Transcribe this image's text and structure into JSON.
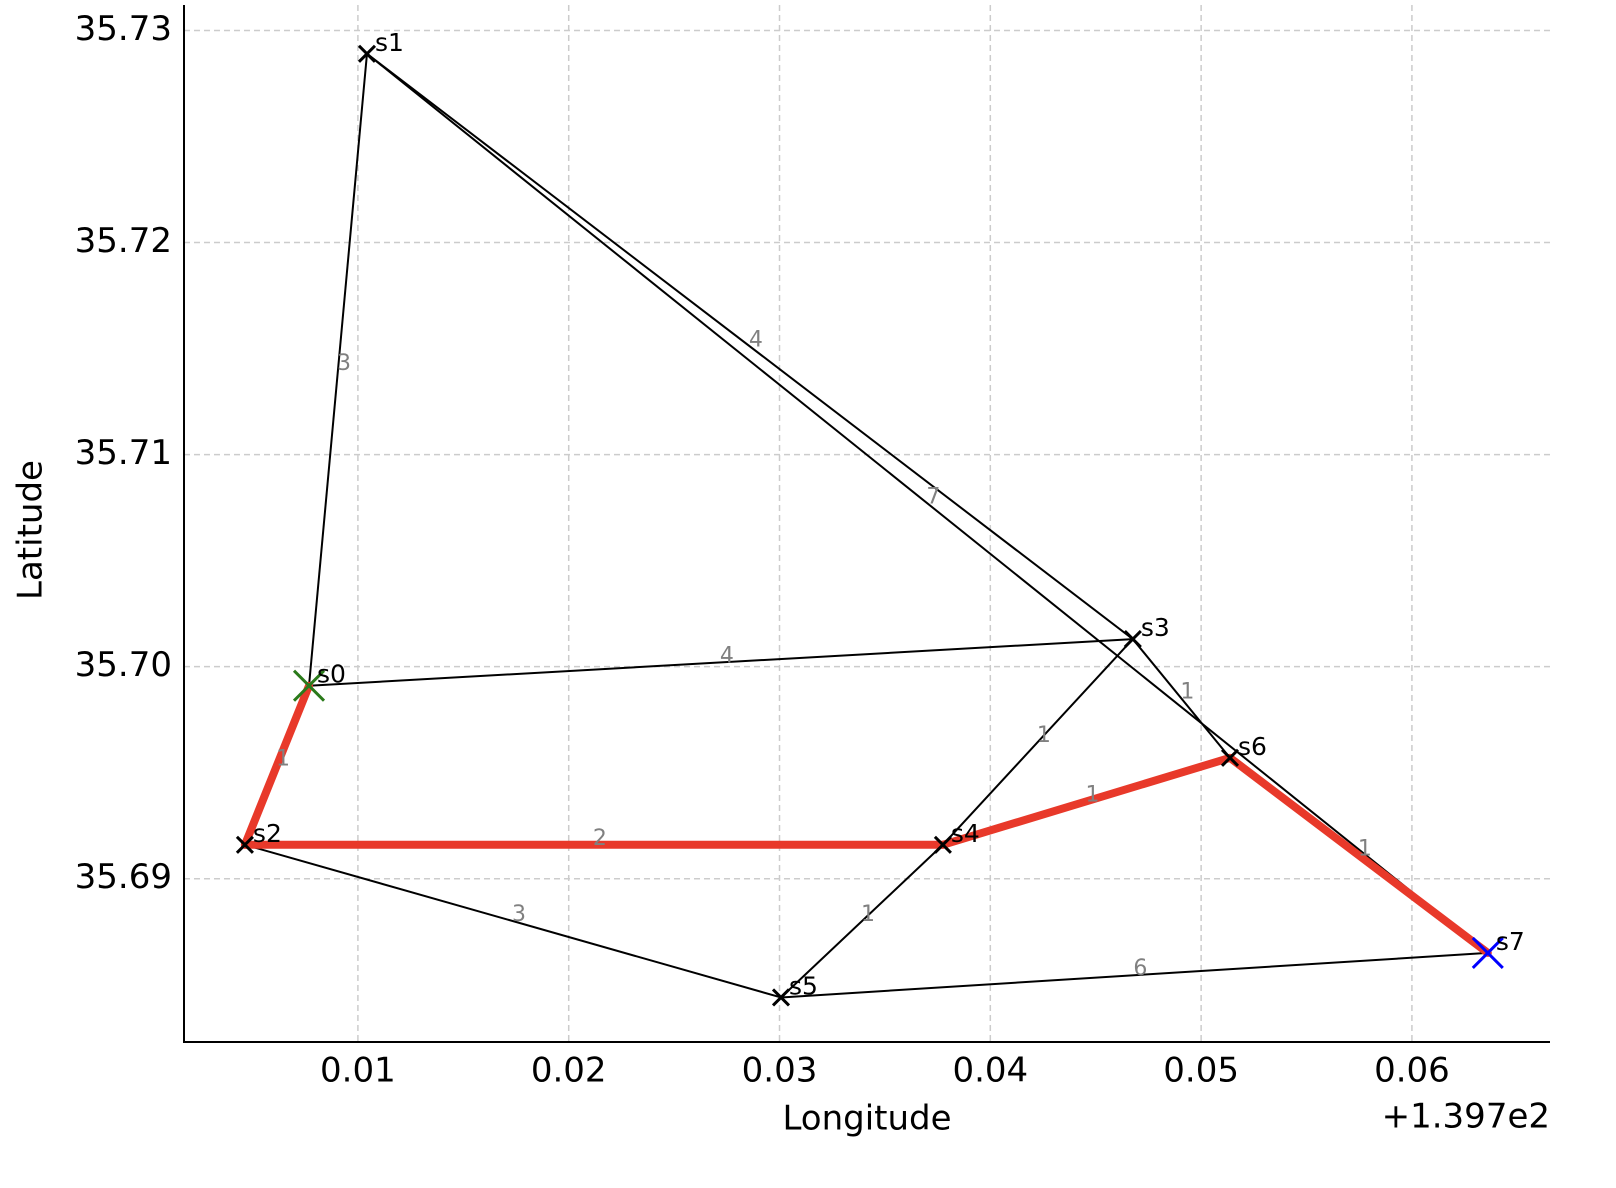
{
  "chart_data": {
    "type": "network",
    "xlabel": "Longitude",
    "ylabel": "Latitude",
    "x_offset_label": "+1.397e2",
    "xlim": [
      0.00175,
      0.06655
    ],
    "ylim": [
      35.6823,
      35.7312
    ],
    "xticks": [
      0.01,
      0.02,
      0.03,
      0.04,
      0.05,
      0.06
    ],
    "yticks": [
      35.69,
      {
        "value": 35.7,
        "label": "35.70"
      },
      35.71,
      35.72,
      35.73
    ],
    "grid": true,
    "node_color": "#000000",
    "edge_color": "#000000",
    "weight_color": "#808080",
    "path_color": "#e8392a",
    "start_color": "#2a7a1a",
    "end_color": "#0000ff",
    "nodes": [
      {
        "name": "s0",
        "x": 0.00768,
        "y": 35.6991
      },
      {
        "name": "s1",
        "x": 0.01043,
        "y": 35.7289
      },
      {
        "name": "s2",
        "x": 0.00464,
        "y": 35.6916
      },
      {
        "name": "s3",
        "x": 0.04676,
        "y": 35.7013
      },
      {
        "name": "s4",
        "x": 0.03775,
        "y": 35.6916
      },
      {
        "name": "s5",
        "x": 0.03007,
        "y": 35.6844
      },
      {
        "name": "s6",
        "x": 0.05137,
        "y": 35.6957
      },
      {
        "name": "s7",
        "x": 0.0636,
        "y": 35.6865
      }
    ],
    "edges": [
      {
        "source": "s0",
        "target": "s1",
        "weight": 3
      },
      {
        "source": "s1",
        "target": "s3",
        "weight": 4
      },
      {
        "source": "s1",
        "target": "s7",
        "weight": 7
      },
      {
        "source": "s0",
        "target": "s3",
        "weight": 4
      },
      {
        "source": "s0",
        "target": "s2",
        "weight": 1
      },
      {
        "source": "s2",
        "target": "s4",
        "weight": 2
      },
      {
        "source": "s2",
        "target": "s5",
        "weight": 3
      },
      {
        "source": "s3",
        "target": "s4",
        "weight": 1
      },
      {
        "source": "s3",
        "target": "s6",
        "weight": 1
      },
      {
        "source": "s4",
        "target": "s5",
        "weight": 1
      },
      {
        "source": "s4",
        "target": "s6",
        "weight": 1
      },
      {
        "source": "s6",
        "target": "s7",
        "weight": 1
      },
      {
        "source": "s5",
        "target": "s7",
        "weight": 6
      }
    ],
    "path": [
      "s0",
      "s2",
      "s4",
      "s6",
      "s7"
    ]
  }
}
